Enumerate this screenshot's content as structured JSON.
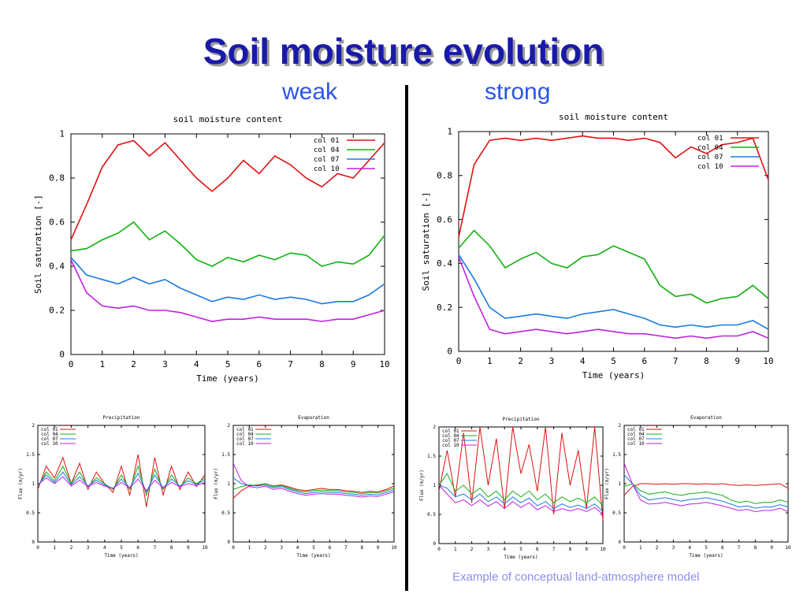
{
  "slide": {
    "title": "Soil moisture evolution",
    "left_label": "weak",
    "right_label": "strong",
    "caption": "Example of conceptual land-atmosphere model"
  },
  "colors": {
    "col01": "#e01010",
    "col04": "#10b010",
    "col07": "#1a7ae0",
    "col10": "#c020e0"
  },
  "chart_data": [
    {
      "id": "sm-weak",
      "type": "line",
      "title": "soil moisture content",
      "xlabel": "Time (years)",
      "ylabel": "Soil saturation [-]",
      "xlim": [
        0,
        10
      ],
      "ylim": [
        0,
        1
      ],
      "xticks": [
        0,
        1,
        2,
        3,
        4,
        5,
        6,
        7,
        8,
        9,
        10
      ],
      "yticks": [
        0,
        0.2,
        0.4,
        0.6,
        0.8,
        1
      ],
      "ytick_labels": [
        "0",
        "0.2",
        "0.4",
        "0.6",
        "0.8",
        "1"
      ],
      "legend": "top-right",
      "x": [
        0,
        0.5,
        1,
        1.5,
        2,
        2.5,
        3,
        3.5,
        4,
        4.5,
        5,
        5.5,
        6,
        6.5,
        7,
        7.5,
        8,
        8.5,
        9,
        9.5,
        10
      ],
      "series": [
        {
          "name": "col 01",
          "color": "#e01010",
          "values": [
            0.52,
            0.68,
            0.85,
            0.95,
            0.97,
            0.9,
            0.96,
            0.88,
            0.8,
            0.74,
            0.8,
            0.88,
            0.82,
            0.9,
            0.86,
            0.8,
            0.76,
            0.82,
            0.8,
            0.88,
            0.96
          ]
        },
        {
          "name": "col 04",
          "color": "#10b010",
          "values": [
            0.47,
            0.48,
            0.52,
            0.55,
            0.6,
            0.52,
            0.56,
            0.5,
            0.43,
            0.4,
            0.44,
            0.42,
            0.45,
            0.43,
            0.46,
            0.45,
            0.4,
            0.42,
            0.41,
            0.45,
            0.54
          ]
        },
        {
          "name": "col 07",
          "color": "#1a7ae0",
          "values": [
            0.44,
            0.36,
            0.34,
            0.32,
            0.35,
            0.32,
            0.34,
            0.3,
            0.27,
            0.24,
            0.26,
            0.25,
            0.27,
            0.25,
            0.26,
            0.25,
            0.23,
            0.24,
            0.24,
            0.27,
            0.32
          ]
        },
        {
          "name": "col 10",
          "color": "#c020e0",
          "values": [
            0.43,
            0.28,
            0.22,
            0.21,
            0.22,
            0.2,
            0.2,
            0.19,
            0.17,
            0.15,
            0.16,
            0.16,
            0.17,
            0.16,
            0.16,
            0.16,
            0.15,
            0.16,
            0.16,
            0.18,
            0.2
          ]
        }
      ]
    },
    {
      "id": "sm-strong",
      "type": "line",
      "title": "soil moisture content",
      "xlabel": "Time (years)",
      "ylabel": "Soil saturation [-]",
      "xlim": [
        0,
        10
      ],
      "ylim": [
        0,
        1
      ],
      "xticks": [
        0,
        1,
        2,
        3,
        4,
        5,
        6,
        7,
        8,
        9,
        10
      ],
      "yticks": [
        0,
        0.2,
        0.4,
        0.6,
        0.8,
        1
      ],
      "ytick_labels": [
        "0",
        "0.2",
        "0.4",
        "0.6",
        "0.8",
        "1"
      ],
      "legend": "top-right",
      "x": [
        0,
        0.5,
        1,
        1.5,
        2,
        2.5,
        3,
        3.5,
        4,
        4.5,
        5,
        5.5,
        6,
        6.5,
        7,
        7.5,
        8,
        8.5,
        9,
        9.5,
        10
      ],
      "series": [
        {
          "name": "col 01",
          "color": "#e01010",
          "values": [
            0.52,
            0.85,
            0.96,
            0.97,
            0.96,
            0.97,
            0.96,
            0.97,
            0.98,
            0.97,
            0.97,
            0.96,
            0.97,
            0.95,
            0.88,
            0.93,
            0.9,
            0.94,
            0.95,
            0.97,
            0.78
          ]
        },
        {
          "name": "col 04",
          "color": "#10b010",
          "values": [
            0.47,
            0.55,
            0.48,
            0.38,
            0.42,
            0.45,
            0.4,
            0.38,
            0.43,
            0.44,
            0.48,
            0.45,
            0.42,
            0.3,
            0.25,
            0.26,
            0.22,
            0.24,
            0.25,
            0.3,
            0.24
          ]
        },
        {
          "name": "col 07",
          "color": "#1a7ae0",
          "values": [
            0.44,
            0.33,
            0.2,
            0.15,
            0.16,
            0.17,
            0.16,
            0.15,
            0.17,
            0.18,
            0.19,
            0.17,
            0.15,
            0.12,
            0.11,
            0.12,
            0.11,
            0.12,
            0.12,
            0.14,
            0.1
          ]
        },
        {
          "name": "col 10",
          "color": "#c020e0",
          "values": [
            0.43,
            0.25,
            0.1,
            0.08,
            0.09,
            0.1,
            0.09,
            0.08,
            0.09,
            0.1,
            0.09,
            0.08,
            0.08,
            0.07,
            0.06,
            0.07,
            0.06,
            0.07,
            0.07,
            0.09,
            0.06
          ]
        }
      ]
    },
    {
      "id": "precip-weak",
      "type": "line",
      "title": "Precipitation",
      "xlabel": "Time (years)",
      "ylabel": "Flux (m/yr)",
      "xlim": [
        0,
        10
      ],
      "ylim": [
        0,
        2
      ],
      "xticks": [
        0,
        1,
        2,
        3,
        4,
        5,
        6,
        7,
        8,
        9,
        10
      ],
      "yticks": [
        0,
        0.5,
        1,
        1.5,
        2
      ],
      "ytick_labels": [
        "0",
        "0.5",
        "1",
        "1.5",
        "2"
      ],
      "legend": "top-left",
      "x": [
        0,
        0.5,
        1,
        1.5,
        2,
        2.5,
        3,
        3.5,
        4,
        4.5,
        5,
        5.5,
        6,
        6.5,
        7,
        7.5,
        8,
        8.5,
        9,
        9.5,
        10
      ],
      "series": [
        {
          "name": "col 01",
          "color": "#e01010",
          "values": [
            0.9,
            1.3,
            1.1,
            1.45,
            1.0,
            1.35,
            0.9,
            1.2,
            1.0,
            0.85,
            1.3,
            0.8,
            1.5,
            0.6,
            1.45,
            0.8,
            1.3,
            0.9,
            1.2,
            0.95,
            1.15
          ]
        },
        {
          "name": "col 04",
          "color": "#10b010",
          "values": [
            0.95,
            1.2,
            1.05,
            1.3,
            1.0,
            1.2,
            0.95,
            1.1,
            1.0,
            0.9,
            1.15,
            0.9,
            1.3,
            0.8,
            1.25,
            0.9,
            1.15,
            0.95,
            1.1,
            1.0,
            1.1
          ]
        },
        {
          "name": "col 07",
          "color": "#1a7ae0",
          "values": [
            0.97,
            1.15,
            1.02,
            1.2,
            0.98,
            1.12,
            0.96,
            1.06,
            0.98,
            0.92,
            1.08,
            0.93,
            1.18,
            0.86,
            1.15,
            0.93,
            1.08,
            0.96,
            1.05,
            0.99,
            1.06
          ]
        },
        {
          "name": "col 10",
          "color": "#c020e0",
          "values": [
            0.98,
            1.1,
            1.0,
            1.12,
            0.96,
            1.06,
            0.95,
            1.02,
            0.96,
            0.92,
            1.02,
            0.93,
            1.08,
            0.88,
            1.06,
            0.93,
            1.02,
            0.95,
            1.0,
            0.97,
            1.02
          ]
        }
      ]
    },
    {
      "id": "evap-weak",
      "type": "line",
      "title": "Evaporation",
      "xlabel": "Time (years)",
      "ylabel": "Flux (m/yr)",
      "xlim": [
        0,
        10
      ],
      "ylim": [
        0,
        2
      ],
      "xticks": [
        0,
        1,
        2,
        3,
        4,
        5,
        6,
        7,
        8,
        9,
        10
      ],
      "yticks": [
        0,
        0.5,
        1,
        1.5,
        2
      ],
      "ytick_labels": [
        "0",
        "0.5",
        "1",
        "1.5",
        "2"
      ],
      "legend": "top-left",
      "x": [
        0,
        0.5,
        1,
        1.5,
        2,
        2.5,
        3,
        3.5,
        4,
        4.5,
        5,
        5.5,
        6,
        6.5,
        7,
        7.5,
        8,
        8.5,
        9,
        9.5,
        10
      ],
      "series": [
        {
          "name": "col 01",
          "color": "#e01010",
          "values": [
            0.75,
            0.88,
            0.96,
            0.98,
            1.0,
            0.96,
            0.98,
            0.94,
            0.9,
            0.88,
            0.9,
            0.92,
            0.9,
            0.9,
            0.88,
            0.87,
            0.85,
            0.87,
            0.86,
            0.9,
            0.96
          ]
        },
        {
          "name": "col 04",
          "color": "#10b010",
          "values": [
            0.9,
            0.95,
            0.98,
            0.97,
            1.0,
            0.95,
            0.97,
            0.92,
            0.88,
            0.86,
            0.88,
            0.89,
            0.88,
            0.88,
            0.86,
            0.85,
            0.83,
            0.85,
            0.84,
            0.88,
            0.92
          ]
        },
        {
          "name": "col 07",
          "color": "#1a7ae0",
          "values": [
            1.1,
            1.0,
            0.97,
            0.96,
            0.98,
            0.93,
            0.95,
            0.9,
            0.86,
            0.83,
            0.85,
            0.86,
            0.85,
            0.85,
            0.83,
            0.82,
            0.8,
            0.82,
            0.81,
            0.85,
            0.89
          ]
        },
        {
          "name": "col 10",
          "color": "#c020e0",
          "values": [
            1.35,
            1.05,
            0.95,
            0.93,
            0.96,
            0.9,
            0.92,
            0.87,
            0.83,
            0.8,
            0.82,
            0.83,
            0.82,
            0.82,
            0.8,
            0.79,
            0.77,
            0.79,
            0.78,
            0.82,
            0.86
          ]
        }
      ]
    },
    {
      "id": "precip-strong",
      "type": "line",
      "title": "Precipitation",
      "xlabel": "Time (years)",
      "ylabel": "Flux (m/yr)",
      "xlim": [
        0,
        10
      ],
      "ylim": [
        0,
        2
      ],
      "xticks": [
        0,
        1,
        2,
        3,
        4,
        5,
        6,
        7,
        8,
        9,
        10
      ],
      "yticks": [
        0,
        0.5,
        1,
        1.5,
        2
      ],
      "ytick_labels": [
        "0",
        "0.5",
        "1",
        "1.5",
        "2"
      ],
      "legend": "top-left",
      "x": [
        0,
        0.5,
        1,
        1.5,
        2,
        2.5,
        3,
        3.5,
        4,
        4.5,
        5,
        5.5,
        6,
        6.5,
        7,
        7.5,
        8,
        8.5,
        9,
        9.5,
        10
      ],
      "series": [
        {
          "name": "col 01",
          "color": "#e01010",
          "values": [
            0.9,
            1.6,
            0.8,
            1.9,
            0.7,
            2.0,
            1.0,
            1.8,
            0.6,
            2.0,
            1.2,
            1.7,
            0.9,
            2.0,
            0.5,
            1.9,
            1.0,
            1.6,
            0.6,
            2.0,
            0.4
          ]
        },
        {
          "name": "col 04",
          "color": "#10b010",
          "values": [
            1.0,
            1.2,
            0.9,
            1.0,
            0.85,
            0.95,
            0.8,
            0.9,
            0.75,
            0.9,
            0.8,
            0.9,
            0.75,
            0.85,
            0.7,
            0.8,
            0.72,
            0.78,
            0.7,
            0.8,
            0.65
          ]
        },
        {
          "name": "col 07",
          "color": "#1a7ae0",
          "values": [
            1.0,
            0.95,
            0.8,
            0.85,
            0.75,
            0.85,
            0.72,
            0.8,
            0.68,
            0.8,
            0.7,
            0.78,
            0.65,
            0.72,
            0.6,
            0.68,
            0.62,
            0.66,
            0.6,
            0.68,
            0.55
          ]
        },
        {
          "name": "col 10",
          "color": "#c020e0",
          "values": [
            1.0,
            0.85,
            0.7,
            0.75,
            0.65,
            0.75,
            0.64,
            0.72,
            0.6,
            0.72,
            0.62,
            0.7,
            0.58,
            0.65,
            0.55,
            0.6,
            0.56,
            0.6,
            0.55,
            0.62,
            0.5
          ]
        }
      ]
    },
    {
      "id": "evap-strong",
      "type": "line",
      "title": "Evaporation",
      "xlabel": "Time (years)",
      "ylabel": "Flux (m/yr)",
      "xlim": [
        0,
        10
      ],
      "ylim": [
        0,
        2
      ],
      "xticks": [
        0,
        1,
        2,
        3,
        4,
        5,
        6,
        7,
        8,
        9,
        10
      ],
      "yticks": [
        0,
        0.5,
        1,
        1.5,
        2
      ],
      "ytick_labels": [
        "0",
        "0.5",
        "1",
        "1.5",
        "2"
      ],
      "legend": "top-left",
      "x": [
        0,
        0.5,
        1,
        1.5,
        2,
        2.5,
        3,
        3.5,
        4,
        4.5,
        5,
        5.5,
        6,
        6.5,
        7,
        7.5,
        8,
        8.5,
        9,
        9.5,
        10
      ],
      "series": [
        {
          "name": "col 01",
          "color": "#e01010",
          "values": [
            0.8,
            0.95,
            1.0,
            1.0,
            0.99,
            1.0,
            0.99,
            1.0,
            1.0,
            0.99,
            1.0,
            0.99,
            1.0,
            0.98,
            0.97,
            0.98,
            0.97,
            0.98,
            0.99,
            1.0,
            0.92
          ]
        },
        {
          "name": "col 04",
          "color": "#10b010",
          "values": [
            0.95,
            1.0,
            0.88,
            0.82,
            0.84,
            0.86,
            0.82,
            0.8,
            0.83,
            0.84,
            0.86,
            0.83,
            0.8,
            0.72,
            0.68,
            0.7,
            0.66,
            0.68,
            0.68,
            0.72,
            0.68
          ]
        },
        {
          "name": "col 07",
          "color": "#1a7ae0",
          "values": [
            1.15,
            1.0,
            0.8,
            0.72,
            0.74,
            0.76,
            0.73,
            0.7,
            0.73,
            0.74,
            0.76,
            0.73,
            0.7,
            0.65,
            0.6,
            0.62,
            0.58,
            0.6,
            0.6,
            0.64,
            0.6
          ]
        },
        {
          "name": "col 10",
          "color": "#c020e0",
          "values": [
            1.35,
            1.0,
            0.72,
            0.65,
            0.66,
            0.68,
            0.65,
            0.62,
            0.65,
            0.66,
            0.68,
            0.65,
            0.62,
            0.58,
            0.54,
            0.56,
            0.52,
            0.54,
            0.54,
            0.58,
            0.52
          ]
        }
      ]
    }
  ]
}
